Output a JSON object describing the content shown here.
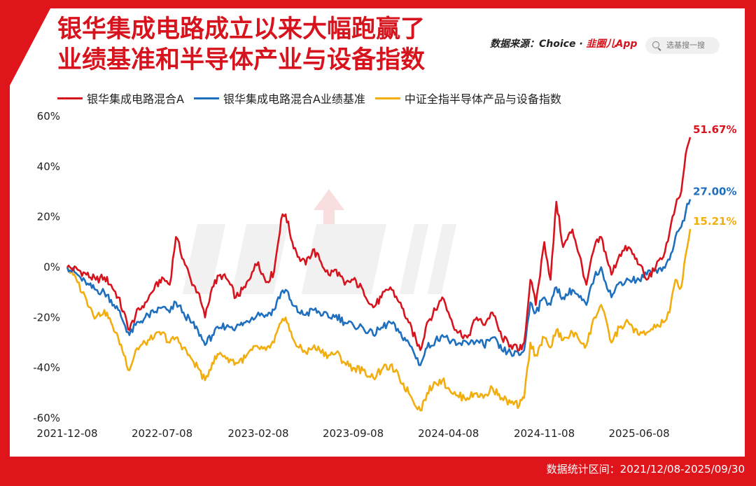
{
  "title_lines": [
    "银华集成电路成立以来大幅跑赢了",
    "业绩基准和半导体产业与设备指数"
  ],
  "source": {
    "prefix": "数据来源：Choice · ",
    "brand": "韭圈儿App"
  },
  "search": {
    "placeholder": "选基搜一搜"
  },
  "footer": "数据统计区间：2021/12/08-2025/09/30",
  "colors": {
    "frame": "#e0141b",
    "fund": "#d7141d",
    "benchmark": "#1f6fbf",
    "index": "#f2ad0e",
    "watermark": "#e8e8e8"
  },
  "chart_data": {
    "type": "line",
    "x_ticks": [
      "2021-12-08",
      "2022-07-08",
      "2023-02-08",
      "2023-09-08",
      "2024-04-08",
      "2024-11-08",
      "2025-06-08"
    ],
    "y_ticks": [
      "60%",
      "40%",
      "20%",
      "0%",
      "-20%",
      "-40%",
      "-60%"
    ],
    "ylim": [
      -60,
      60
    ],
    "xlim": [
      "2021-12-08",
      "2025-09-30"
    ],
    "series": [
      {
        "name": "银华集成电路混合A",
        "color_key": "fund",
        "end_label": "51.67%",
        "points": [
          [
            "2021-12-08",
            0
          ],
          [
            "2021-12-31",
            -1
          ],
          [
            "2022-01-20",
            -3
          ],
          [
            "2022-02-10",
            -5
          ],
          [
            "2022-03-01",
            -4
          ],
          [
            "2022-03-16",
            -7
          ],
          [
            "2022-04-01",
            -12
          ],
          [
            "2022-04-26",
            -25
          ],
          [
            "2022-05-10",
            -19
          ],
          [
            "2022-05-31",
            -14
          ],
          [
            "2022-06-20",
            -9
          ],
          [
            "2022-07-08",
            -4
          ],
          [
            "2022-07-25",
            -7
          ],
          [
            "2022-08-08",
            12
          ],
          [
            "2022-08-25",
            3
          ],
          [
            "2022-09-10",
            -5
          ],
          [
            "2022-09-26",
            -10
          ],
          [
            "2022-10-12",
            -20
          ],
          [
            "2022-10-28",
            -8
          ],
          [
            "2022-11-15",
            -3
          ],
          [
            "2022-12-01",
            -5
          ],
          [
            "2022-12-20",
            -12
          ],
          [
            "2023-01-10",
            -8
          ],
          [
            "2023-01-25",
            -2
          ],
          [
            "2023-02-08",
            2
          ],
          [
            "2023-02-25",
            -6
          ],
          [
            "2023-03-15",
            -2
          ],
          [
            "2023-03-31",
            19
          ],
          [
            "2023-04-10",
            21
          ],
          [
            "2023-04-25",
            10
          ],
          [
            "2023-05-10",
            4
          ],
          [
            "2023-05-25",
            1
          ],
          [
            "2023-06-10",
            7
          ],
          [
            "2023-06-25",
            3
          ],
          [
            "2023-07-15",
            -3
          ],
          [
            "2023-08-01",
            -1
          ],
          [
            "2023-08-20",
            -7
          ],
          [
            "2023-09-08",
            -5
          ],
          [
            "2023-09-30",
            -9
          ],
          [
            "2023-10-23",
            -16
          ],
          [
            "2023-11-10",
            -12
          ],
          [
            "2023-11-30",
            -8
          ],
          [
            "2023-12-20",
            -14
          ],
          [
            "2024-01-10",
            -22
          ],
          [
            "2024-02-05",
            -33
          ],
          [
            "2024-02-20",
            -22
          ],
          [
            "2024-03-10",
            -17
          ],
          [
            "2024-03-25",
            -12
          ],
          [
            "2024-04-08",
            -18
          ],
          [
            "2024-04-25",
            -25
          ],
          [
            "2024-05-20",
            -28
          ],
          [
            "2024-06-10",
            -20
          ],
          [
            "2024-06-25",
            -23
          ],
          [
            "2024-07-15",
            -18
          ],
          [
            "2024-08-05",
            -28
          ],
          [
            "2024-08-25",
            -31
          ],
          [
            "2024-09-13",
            -33
          ],
          [
            "2024-09-24",
            -30
          ],
          [
            "2024-10-08",
            -5
          ],
          [
            "2024-10-20",
            -15
          ],
          [
            "2024-11-08",
            10
          ],
          [
            "2024-11-22",
            -5
          ],
          [
            "2024-12-05",
            26
          ],
          [
            "2024-12-20",
            8
          ],
          [
            "2025-01-10",
            15
          ],
          [
            "2025-01-25",
            5
          ],
          [
            "2025-02-10",
            -7
          ],
          [
            "2025-02-28",
            8
          ],
          [
            "2025-03-15",
            12
          ],
          [
            "2025-04-07",
            -3
          ],
          [
            "2025-04-25",
            5
          ],
          [
            "2025-05-15",
            8
          ],
          [
            "2025-06-08",
            1
          ],
          [
            "2025-06-25",
            -5
          ],
          [
            "2025-07-15",
            0
          ],
          [
            "2025-08-01",
            4
          ],
          [
            "2025-08-15",
            14
          ],
          [
            "2025-08-28",
            24
          ],
          [
            "2025-09-10",
            30
          ],
          [
            "2025-09-20",
            45
          ],
          [
            "2025-09-30",
            51.67
          ]
        ]
      },
      {
        "name": "银华集成电路混合A业绩基准",
        "color_key": "benchmark",
        "end_label": "27.00%",
        "points": [
          [
            "2021-12-08",
            0
          ],
          [
            "2021-12-31",
            -3
          ],
          [
            "2022-01-20",
            -7
          ],
          [
            "2022-02-10",
            -9
          ],
          [
            "2022-03-01",
            -10
          ],
          [
            "2022-03-16",
            -13
          ],
          [
            "2022-04-01",
            -17
          ],
          [
            "2022-04-26",
            -27
          ],
          [
            "2022-05-10",
            -23
          ],
          [
            "2022-05-31",
            -20
          ],
          [
            "2022-06-20",
            -18
          ],
          [
            "2022-07-08",
            -16
          ],
          [
            "2022-07-25",
            -18
          ],
          [
            "2022-08-08",
            -14
          ],
          [
            "2022-08-25",
            -18
          ],
          [
            "2022-09-10",
            -22
          ],
          [
            "2022-09-26",
            -25
          ],
          [
            "2022-10-12",
            -31
          ],
          [
            "2022-10-28",
            -27
          ],
          [
            "2022-11-15",
            -24
          ],
          [
            "2022-12-01",
            -23
          ],
          [
            "2022-12-20",
            -24
          ],
          [
            "2023-01-10",
            -22
          ],
          [
            "2023-01-25",
            -20
          ],
          [
            "2023-02-08",
            -18
          ],
          [
            "2023-02-25",
            -19
          ],
          [
            "2023-03-15",
            -17
          ],
          [
            "2023-03-31",
            -10
          ],
          [
            "2023-04-10",
            -9
          ],
          [
            "2023-04-25",
            -15
          ],
          [
            "2023-05-10",
            -18
          ],
          [
            "2023-05-25",
            -19
          ],
          [
            "2023-06-10",
            -17
          ],
          [
            "2023-06-25",
            -18
          ],
          [
            "2023-07-15",
            -20
          ],
          [
            "2023-08-01",
            -19
          ],
          [
            "2023-08-20",
            -22
          ],
          [
            "2023-09-08",
            -23
          ],
          [
            "2023-09-30",
            -24
          ],
          [
            "2023-10-23",
            -27
          ],
          [
            "2023-11-10",
            -24
          ],
          [
            "2023-11-30",
            -22
          ],
          [
            "2023-12-20",
            -26
          ],
          [
            "2024-01-10",
            -30
          ],
          [
            "2024-02-05",
            -39
          ],
          [
            "2024-02-20",
            -32
          ],
          [
            "2024-03-10",
            -29
          ],
          [
            "2024-03-25",
            -27
          ],
          [
            "2024-04-08",
            -29
          ],
          [
            "2024-04-25",
            -31
          ],
          [
            "2024-05-20",
            -30
          ],
          [
            "2024-06-10",
            -29
          ],
          [
            "2024-06-25",
            -31
          ],
          [
            "2024-07-15",
            -28
          ],
          [
            "2024-08-05",
            -33
          ],
          [
            "2024-08-25",
            -34
          ],
          [
            "2024-09-13",
            -35
          ],
          [
            "2024-09-24",
            -33
          ],
          [
            "2024-10-08",
            -14
          ],
          [
            "2024-10-20",
            -18
          ],
          [
            "2024-11-08",
            -12
          ],
          [
            "2024-11-22",
            -15
          ],
          [
            "2024-12-05",
            -8
          ],
          [
            "2024-12-20",
            -12
          ],
          [
            "2025-01-10",
            -9
          ],
          [
            "2025-01-25",
            -12
          ],
          [
            "2025-02-10",
            -15
          ],
          [
            "2025-02-28",
            -4
          ],
          [
            "2025-03-15",
            0
          ],
          [
            "2025-04-07",
            -12
          ],
          [
            "2025-04-25",
            -6
          ],
          [
            "2025-05-15",
            -5
          ],
          [
            "2025-06-08",
            -5
          ],
          [
            "2025-06-25",
            -3
          ],
          [
            "2025-07-15",
            -1
          ],
          [
            "2025-08-01",
            0
          ],
          [
            "2025-08-15",
            3
          ],
          [
            "2025-08-28",
            12
          ],
          [
            "2025-09-10",
            16
          ],
          [
            "2025-09-20",
            22
          ],
          [
            "2025-09-30",
            27.0
          ]
        ]
      },
      {
        "name": "中证全指半导体产品与设备指数",
        "color_key": "index",
        "end_label": "15.21%",
        "points": [
          [
            "2021-12-08",
            0
          ],
          [
            "2021-12-31",
            -6
          ],
          [
            "2022-01-20",
            -13
          ],
          [
            "2022-02-10",
            -20
          ],
          [
            "2022-03-01",
            -17
          ],
          [
            "2022-03-16",
            -22
          ],
          [
            "2022-04-01",
            -28
          ],
          [
            "2022-04-26",
            -41
          ],
          [
            "2022-05-10",
            -33
          ],
          [
            "2022-05-31",
            -30
          ],
          [
            "2022-06-20",
            -28
          ],
          [
            "2022-07-08",
            -26
          ],
          [
            "2022-07-25",
            -30
          ],
          [
            "2022-08-08",
            -28
          ],
          [
            "2022-08-25",
            -32
          ],
          [
            "2022-09-10",
            -36
          ],
          [
            "2022-09-26",
            -40
          ],
          [
            "2022-10-12",
            -45
          ],
          [
            "2022-10-28",
            -38
          ],
          [
            "2022-11-15",
            -34
          ],
          [
            "2022-12-01",
            -36
          ],
          [
            "2022-12-20",
            -38
          ],
          [
            "2023-01-10",
            -36
          ],
          [
            "2023-01-25",
            -33
          ],
          [
            "2023-02-08",
            -32
          ],
          [
            "2023-02-25",
            -33
          ],
          [
            "2023-03-15",
            -30
          ],
          [
            "2023-03-31",
            -22
          ],
          [
            "2023-04-10",
            -20
          ],
          [
            "2023-04-25",
            -28
          ],
          [
            "2023-05-10",
            -32
          ],
          [
            "2023-05-25",
            -34
          ],
          [
            "2023-06-10",
            -32
          ],
          [
            "2023-06-25",
            -33
          ],
          [
            "2023-07-15",
            -35
          ],
          [
            "2023-08-01",
            -34
          ],
          [
            "2023-08-20",
            -38
          ],
          [
            "2023-09-08",
            -40
          ],
          [
            "2023-09-30",
            -41
          ],
          [
            "2023-10-23",
            -44
          ],
          [
            "2023-11-10",
            -41
          ],
          [
            "2023-11-30",
            -39
          ],
          [
            "2023-12-20",
            -44
          ],
          [
            "2024-01-10",
            -50
          ],
          [
            "2024-02-05",
            -57
          ],
          [
            "2024-02-20",
            -50
          ],
          [
            "2024-03-10",
            -46
          ],
          [
            "2024-03-25",
            -45
          ],
          [
            "2024-04-08",
            -48
          ],
          [
            "2024-04-25",
            -51
          ],
          [
            "2024-05-20",
            -52
          ],
          [
            "2024-06-10",
            -50
          ],
          [
            "2024-06-25",
            -52
          ],
          [
            "2024-07-15",
            -48
          ],
          [
            "2024-08-05",
            -52
          ],
          [
            "2024-08-25",
            -54
          ],
          [
            "2024-09-13",
            -55
          ],
          [
            "2024-09-24",
            -52
          ],
          [
            "2024-10-08",
            -30
          ],
          [
            "2024-10-20",
            -35
          ],
          [
            "2024-11-08",
            -28
          ],
          [
            "2024-11-22",
            -32
          ],
          [
            "2024-12-05",
            -25
          ],
          [
            "2024-12-20",
            -29
          ],
          [
            "2025-01-10",
            -26
          ],
          [
            "2025-01-25",
            -29
          ],
          [
            "2025-02-10",
            -31
          ],
          [
            "2025-02-28",
            -20
          ],
          [
            "2025-03-15",
            -15
          ],
          [
            "2025-04-07",
            -30
          ],
          [
            "2025-04-25",
            -24
          ],
          [
            "2025-05-15",
            -22
          ],
          [
            "2025-06-08",
            -27
          ],
          [
            "2025-06-25",
            -26
          ],
          [
            "2025-07-15",
            -24
          ],
          [
            "2025-08-01",
            -22
          ],
          [
            "2025-08-15",
            -18
          ],
          [
            "2025-08-28",
            -5
          ],
          [
            "2025-09-10",
            -8
          ],
          [
            "2025-09-20",
            5
          ],
          [
            "2025-09-30",
            15.21
          ]
        ]
      }
    ]
  }
}
